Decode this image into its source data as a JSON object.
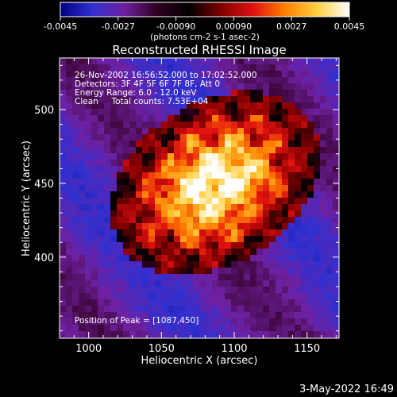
{
  "chart_data": {
    "type": "heatmap",
    "title": "Reconstructed RHESSI Image",
    "xlabel": "Heliocentric X (arcsec)",
    "ylabel": "Heliocentric Y (arcsec)",
    "xlim": [
      980,
      1172
    ],
    "ylim": [
      345,
      535
    ],
    "xticks": [
      1000,
      1050,
      1100,
      1150
    ],
    "yticks": [
      400,
      450,
      500
    ],
    "colorbar": {
      "range": [
        -0.0045,
        0.0045
      ],
      "ticks": [
        "-0.0045",
        "-0.0027",
        "-0.00090",
        "0.00090",
        "0.0027",
        "0.0045"
      ],
      "label": "(photons cm-2 s-1 asec-2)",
      "colormap": [
        "#000080",
        "#3030d0",
        "#7020a0",
        "#300020",
        "#000000",
        "#800000",
        "#e01010",
        "#ff8000",
        "#ffd040",
        "#ffffff"
      ]
    },
    "annotations": [
      "26-Nov-2002 16:56:52.000 to 17:02:52.000",
      "Detectors: 3F 4F 5F 6F 7F 8F, Att 0",
      "Energy Range: 6.0 - 12.0 keV",
      "Clean     Total counts: 7.53E+04"
    ],
    "peak_label": "Position of Peak = [1087,450]",
    "peak": [
      1087,
      450
    ],
    "timestamp": "3-May-2022 16:49"
  }
}
